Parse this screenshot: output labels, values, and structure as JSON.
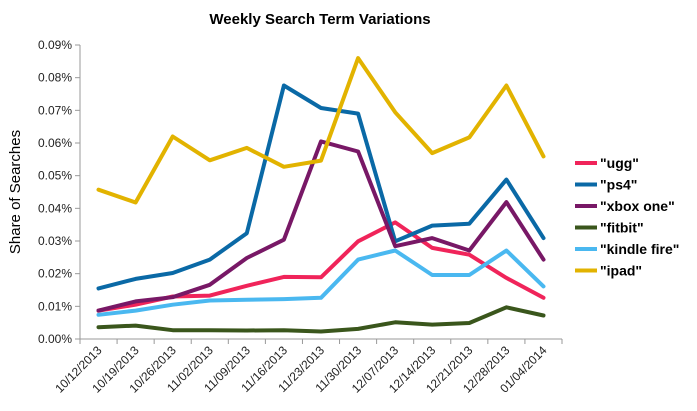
{
  "chart_data": {
    "type": "line",
    "title": "Weekly Search Term Variations",
    "xlabel": "",
    "ylabel": "Share of Searches",
    "ylim": [
      0,
      0.09
    ],
    "yticks": [
      "0.00%",
      "0.01%",
      "0.02%",
      "0.03%",
      "0.04%",
      "0.05%",
      "0.06%",
      "0.07%",
      "0.08%",
      "0.09%"
    ],
    "grid": false,
    "legend_position": "right",
    "categories": [
      "10/12/2013",
      "10/19/2013",
      "10/26/2013",
      "11/02/2013",
      "11/09/2013",
      "11/16/2013",
      "11/23/2013",
      "11/30/2013",
      "12/07/2013",
      "12/14/2013",
      "12/21/2013",
      "12/28/2013",
      "01/04/2014"
    ],
    "series": [
      {
        "name": "\"ugg\"",
        "color": "#f0245a",
        "values": [
          0.0087,
          0.0105,
          0.013,
          0.0133,
          0.0163,
          0.019,
          0.0189,
          0.0299,
          0.0357,
          0.0279,
          0.0258,
          0.0187,
          0.0126
        ]
      },
      {
        "name": "\"ps4\"",
        "color": "#0a69a6",
        "values": [
          0.0155,
          0.0184,
          0.0202,
          0.0243,
          0.0324,
          0.0776,
          0.0707,
          0.069,
          0.0299,
          0.0347,
          0.0353,
          0.0488,
          0.0309
        ]
      },
      {
        "name": "\"xbox one\"",
        "color": "#781866",
        "values": [
          0.0087,
          0.0115,
          0.0128,
          0.0166,
          0.0248,
          0.0304,
          0.0605,
          0.0574,
          0.0284,
          0.0309,
          0.0271,
          0.0419,
          0.0243
        ]
      },
      {
        "name": "\"fitbit\"",
        "color": "#3a561c",
        "values": [
          0.0036,
          0.0041,
          0.0027,
          0.0027,
          0.0026,
          0.0027,
          0.0023,
          0.0031,
          0.0051,
          0.0044,
          0.0049,
          0.0097,
          0.0072
        ]
      },
      {
        "name": "\"kindle fire\"",
        "color": "#4ab8f0",
        "values": [
          0.0074,
          0.0087,
          0.0105,
          0.0118,
          0.012,
          0.0122,
          0.0126,
          0.0243,
          0.0271,
          0.0196,
          0.0196,
          0.0271,
          0.0161
        ]
      },
      {
        "name": "\"ipad\"",
        "color": "#e2b300",
        "values": [
          0.0457,
          0.0418,
          0.062,
          0.0547,
          0.0585,
          0.0527,
          0.0546,
          0.086,
          0.0694,
          0.0569,
          0.0617,
          0.0776,
          0.0559
        ]
      }
    ]
  }
}
